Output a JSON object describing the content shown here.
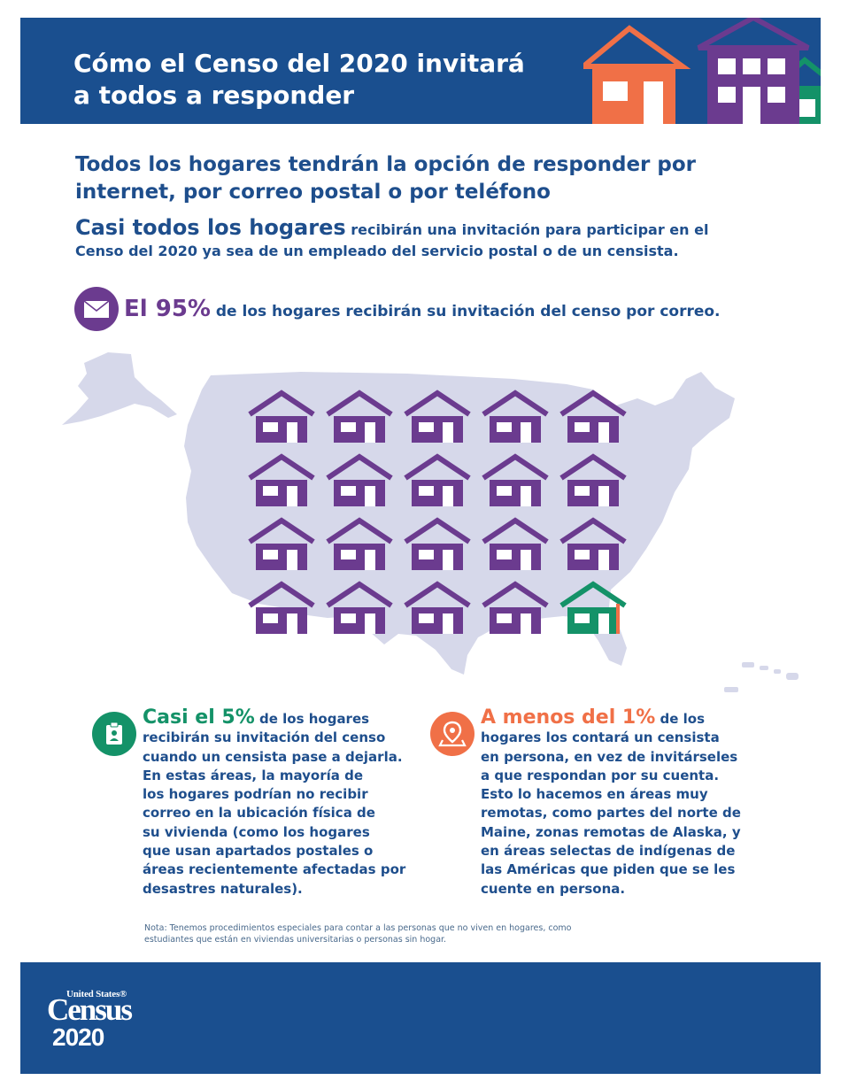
{
  "header": {
    "title_line1": "Cómo el Censo del 2020 invitará",
    "title_line2": "a todos a responder"
  },
  "headline": {
    "line1": "Todos los hogares tendrán la opción de responder por",
    "line2": "internet, por correo postal o por teléfono"
  },
  "intro": {
    "lead": "Casi todos los hogares",
    "line1_rest": " recibirán una invitación para participar en el",
    "line2": "Censo del 2020 ya sea de un empleado del servicio postal o de un censista."
  },
  "mail": {
    "icon": "mail-icon",
    "big": "El 95%",
    "rest": " de los hogares recibirán su invitación del censo por correo."
  },
  "house_grid": {
    "rows": 4,
    "columns": 5,
    "colors": {
      "mail": "#6b3b8f",
      "census_worker": "#149268",
      "in_person": "#f07047"
    },
    "map_color": "#d6d8ea"
  },
  "left_column": {
    "icon": "clipboard-icon",
    "big": "Casi el 5%",
    "line1_rest": " de los hogares",
    "lines": [
      "recibirán su invitación del censo",
      "cuando un censista pase a dejarla.",
      "En estas áreas, la mayoría de",
      "los hogares podrían no recibir",
      "correo en la ubicación física de",
      "su vivienda (como los hogares",
      "que usan apartados postales o",
      "áreas recientemente afectadas por",
      "desastres naturales)."
    ]
  },
  "right_column": {
    "icon": "location-pin-icon",
    "big": "A menos del 1%",
    "line1_rest": " de los",
    "lines": [
      "hogares los contará un censista",
      "en persona, en vez de invitárseles",
      "a que respondan por su cuenta.",
      "Esto lo hacemos en áreas muy",
      "remotas, como partes del norte de",
      "Maine, zonas remotas de Alaska, y",
      "en áreas selectas de indígenas de",
      "las Américas que piden que se les",
      "cuente en persona."
    ]
  },
  "note": {
    "line1": "Nota: Tenemos procedimientos especiales para contar a las personas que no viven en hogares, como",
    "line2": "estudiantes que están en viviendas universitarias o personas sin hogar."
  },
  "footer": {
    "logo_line1": "United States®",
    "logo_line2": "Census",
    "logo_line3": "2020"
  }
}
